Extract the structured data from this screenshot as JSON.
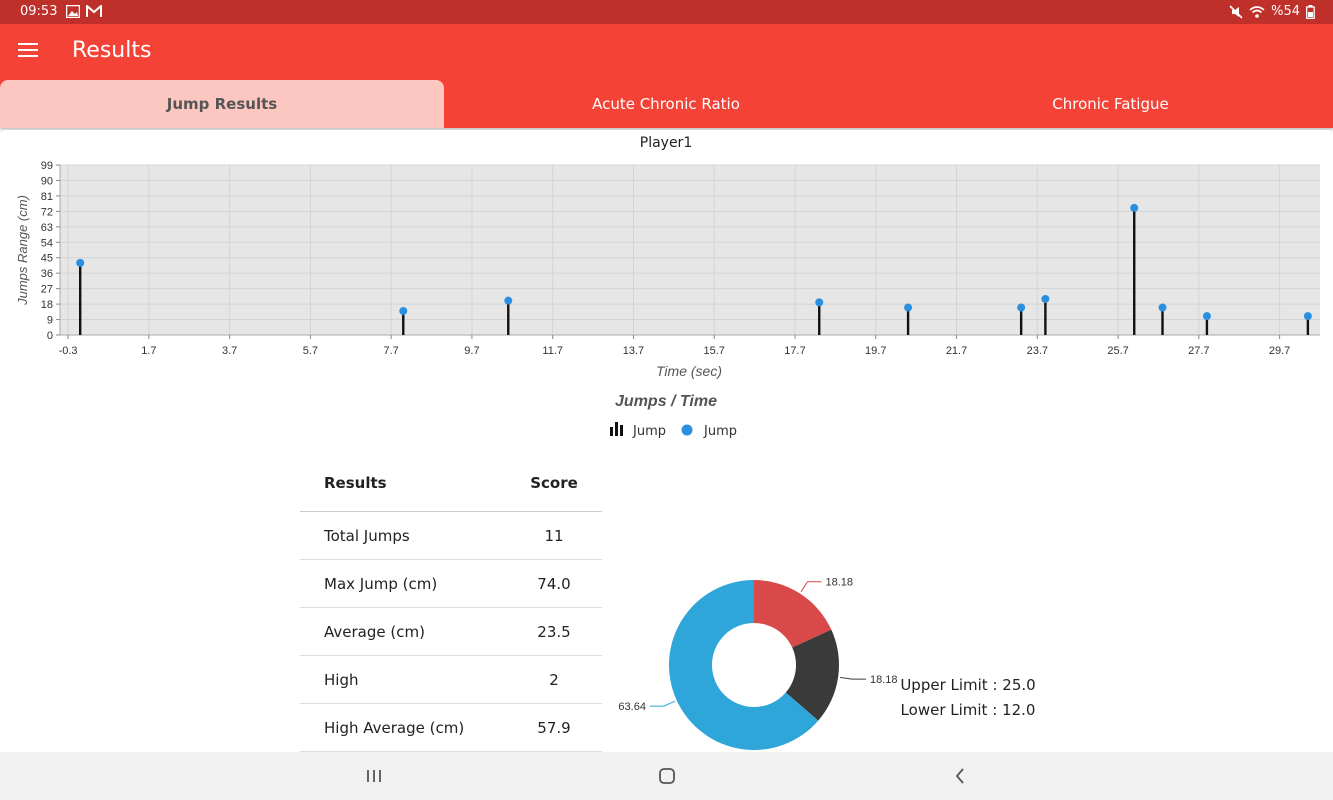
{
  "status_bar": {
    "time": "09:53",
    "battery": "%54",
    "icons": [
      "image-icon",
      "gmail-icon",
      "mute-icon",
      "wifi-icon",
      "battery-icon"
    ]
  },
  "app_bar": {
    "title": "Results",
    "menu_icon": "menu-icon"
  },
  "tabs": [
    {
      "label": "Jump Results",
      "active": true
    },
    {
      "label": "Acute Chronic Ratio",
      "active": false
    },
    {
      "label": "Chronic Fatigue",
      "active": false
    }
  ],
  "colors": {
    "accent": "#f44336",
    "status": "#c0302a",
    "tab_active": "#fdc7c1",
    "point": "#2b8fe0",
    "pie_blue": "#2ea6da",
    "pie_red": "#d94949",
    "pie_dark": "#3a3a3a"
  },
  "chart_data": {
    "type": "bar",
    "title": "Player1",
    "subtitle": "Jumps / Time",
    "xlabel": "Time (sec)",
    "ylabel": "Jumps Range (cm)",
    "x_ticks": [
      "-0.3",
      "1.7",
      "3.7",
      "5.7",
      "7.7",
      "9.7",
      "11.7",
      "13.7",
      "15.7",
      "17.7",
      "19.7",
      "21.7",
      "23.7",
      "25.7",
      "27.7",
      "29.7"
    ],
    "y_ticks": [
      "0",
      "9",
      "18",
      "27",
      "36",
      "45",
      "54",
      "63",
      "72",
      "81",
      "90",
      "99"
    ],
    "xlim": [
      -0.5,
      30.7
    ],
    "ylim": [
      0,
      99
    ],
    "grid": true,
    "legend": [
      "Jump",
      "Jump"
    ],
    "legend_position": "bottom",
    "x": [
      0.0,
      8.0,
      10.6,
      18.3,
      20.5,
      23.3,
      23.9,
      26.1,
      26.8,
      27.9,
      30.4
    ],
    "values": [
      42,
      14,
      20,
      19,
      16,
      16,
      21,
      74,
      16,
      11,
      11
    ]
  },
  "results_table": {
    "headers": [
      "Results",
      "Score"
    ],
    "rows": [
      [
        "Total Jumps",
        "11"
      ],
      [
        "Max Jump (cm)",
        "74.0"
      ],
      [
        "Average (cm)",
        "23.5"
      ],
      [
        "High",
        "2"
      ],
      [
        "High Average (cm)",
        "57.9"
      ]
    ]
  },
  "pie_chart": {
    "type": "pie",
    "slices": [
      {
        "label": "18.18",
        "value": 18.18,
        "color": "#d94949"
      },
      {
        "label": "18.18",
        "value": 18.18,
        "color": "#3a3a3a"
      },
      {
        "label": "63.64",
        "value": 63.64,
        "color": "#2ea6da"
      }
    ]
  },
  "limits": {
    "upper": "Upper Limit : 25.0",
    "lower": "Lower Limit : 12.0"
  },
  "nav_bar": {
    "icons": [
      "recents-icon",
      "home-icon",
      "back-icon"
    ]
  }
}
